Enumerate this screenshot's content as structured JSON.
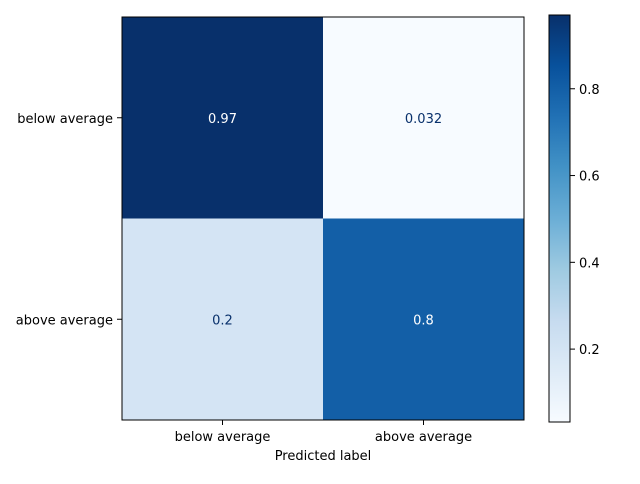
{
  "chart_data": {
    "type": "heatmap",
    "title": "",
    "xlabel": "Predicted label",
    "ylabel": "",
    "x_categories": [
      "below average",
      "above average"
    ],
    "y_categories": [
      "below average",
      "above average"
    ],
    "values": [
      [
        0.97,
        0.032
      ],
      [
        0.2,
        0.8
      ]
    ],
    "cell_labels": [
      [
        "0.97",
        "0.032"
      ],
      [
        "0.2",
        "0.8"
      ]
    ],
    "colormap": "Blues",
    "colorbar": {
      "range": [
        0.032,
        0.97
      ],
      "ticks": [
        0.2,
        0.4,
        0.6,
        0.8
      ],
      "tick_labels": [
        "0.2",
        "0.4",
        "0.6",
        "0.8"
      ]
    },
    "text_color_dark_cells": "#ffffff",
    "text_color_light_cells": "#08306b"
  }
}
